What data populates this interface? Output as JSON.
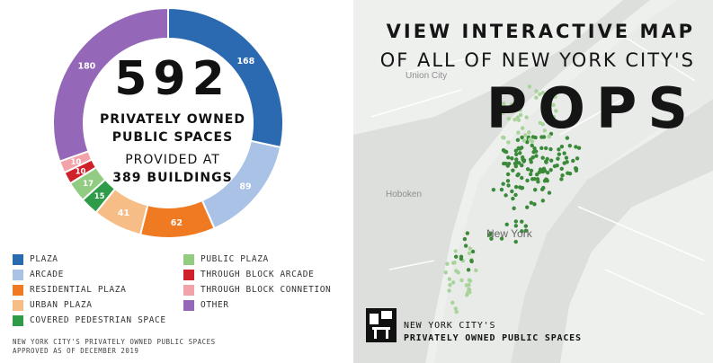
{
  "chart_data": {
    "type": "pie",
    "categories": [
      "Plaza",
      "Arcade",
      "Residential Plaza",
      "Urban Plaza",
      "Covered Pedestrian Space",
      "Public Plaza",
      "Through Block Arcade",
      "Through Block Connetion",
      "Other"
    ],
    "values": [
      168,
      89,
      62,
      41,
      15,
      17,
      10,
      10,
      180
    ],
    "colors": [
      "#2b6ab1",
      "#a9c2e6",
      "#ef7a22",
      "#f7bd87",
      "#2e9b48",
      "#92cc82",
      "#cf2129",
      "#f2a3a9",
      "#9467b8"
    ],
    "slice_order": [
      0,
      1,
      2,
      3,
      4,
      5,
      6,
      7,
      8
    ],
    "donut": true,
    "center_text": {
      "number": "592",
      "line1": "PRIVATELY OWNED",
      "line2": "PUBLIC SPACES",
      "line3": "PROVIDED AT",
      "line4": "389 BUILDINGS"
    },
    "legend": {
      "left": [
        {
          "label": "PLAZA",
          "color": "#2b6ab1"
        },
        {
          "label": "ARCADE",
          "color": "#a9c2e6"
        },
        {
          "label": "RESIDENTIAL PLAZA",
          "color": "#ef7a22"
        },
        {
          "label": "URBAN PLAZA",
          "color": "#f7bd87"
        },
        {
          "label": "COVERED PEDESTRIAN SPACE",
          "color": "#2e9b48"
        }
      ],
      "right": [
        {
          "label": "PUBLIC PLAZA",
          "color": "#92cc82"
        },
        {
          "label": "THROUGH BLOCK ARCADE",
          "color": "#cf2129"
        },
        {
          "label": "THROUGH BLOCK CONNETION",
          "color": "#f2a3a9"
        },
        {
          "label": "OTHER",
          "color": "#9467b8"
        }
      ]
    },
    "footnote_line1": "NEW YORK CITY'S PRIVATELY OWNED PUBLIC SPACES",
    "footnote_line2": "APPROVED AS OF DECEMBER 2019"
  },
  "map": {
    "title_line1": "VIEW INTERACTIVE MAP",
    "title_line2": "OF ALL OF NEW YORK CITY'S",
    "title_line3": "POPS",
    "places": {
      "hoboken": "Hoboken",
      "union_city": "Union City",
      "new_york": "New York"
    },
    "brand_line1": "NEW YORK CITY'S",
    "brand_line2": "PRIVATELY OWNED PUBLIC SPACES",
    "colors": {
      "water": "#d9dcd9",
      "land": "#eef0ee",
      "dots_dark": "#3a8a3a",
      "dots_light": "#a8d39a"
    }
  }
}
